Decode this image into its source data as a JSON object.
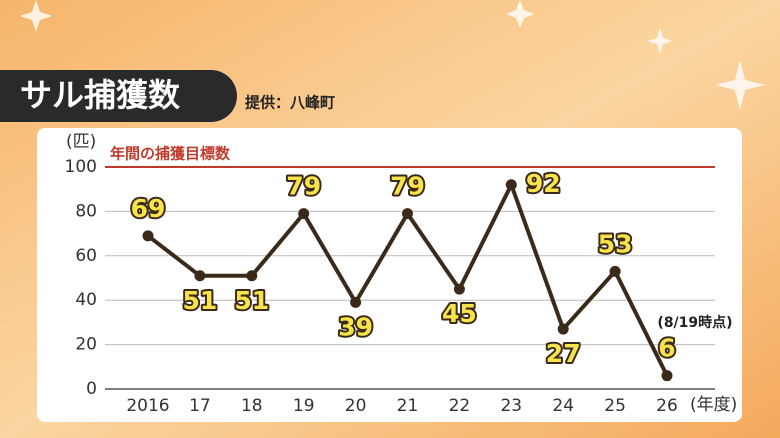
{
  "chart_data": {
    "type": "line",
    "title": "サル捕獲数",
    "source": "提供：八峰町",
    "y_label": "(匹)",
    "x_label": "(年度)",
    "annotation": "(8/19時点)",
    "target": {
      "value": 100,
      "label": "年間の捕獲目標数",
      "color": "#c0392b"
    },
    "categories": [
      "2016",
      "17",
      "18",
      "19",
      "20",
      "21",
      "22",
      "23",
      "24",
      "25",
      "26"
    ],
    "series": [
      {
        "name": "サル捕獲数",
        "color": "#3b2a1a",
        "values": [
          69,
          51,
          51,
          79,
          39,
          79,
          45,
          92,
          27,
          53,
          6
        ]
      }
    ],
    "ylim": [
      0,
      100
    ],
    "yticks": [
      0,
      20,
      40,
      60,
      80,
      100
    ],
    "grid": true
  }
}
